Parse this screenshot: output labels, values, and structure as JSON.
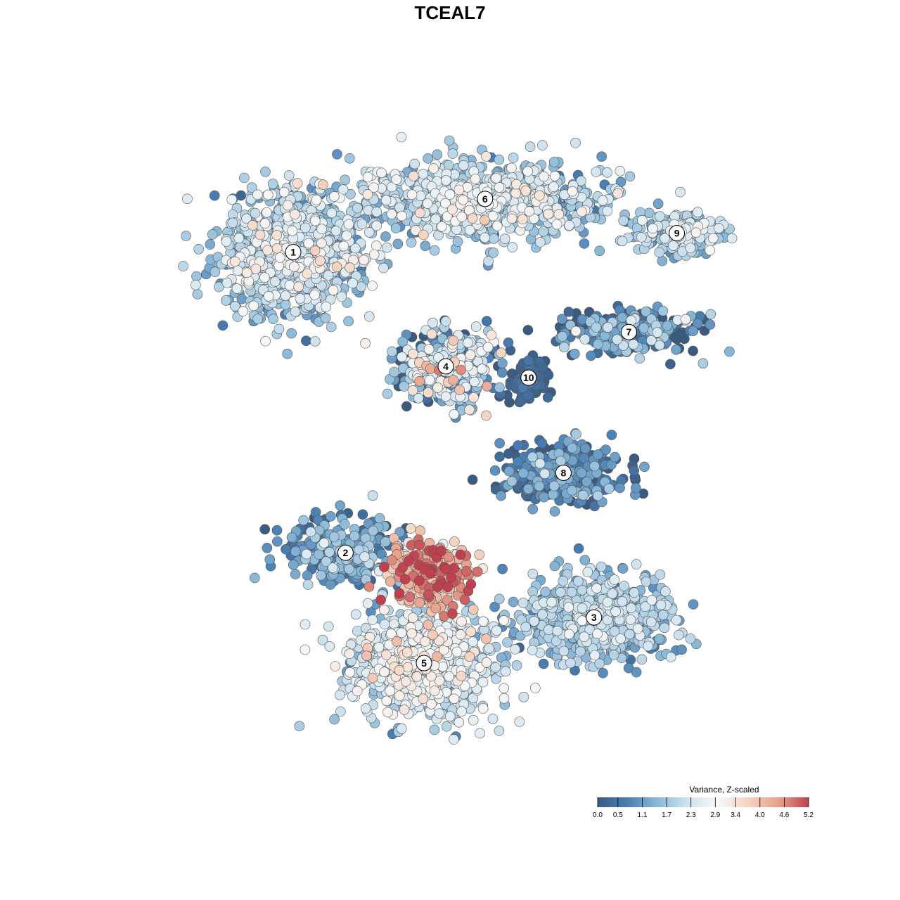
{
  "title": "TCEAL7",
  "chart_data": {
    "type": "scatter",
    "title": "TCEAL7",
    "xlabel": "",
    "ylabel": "",
    "axes_visible": false,
    "grid": false,
    "clusters": [
      {
        "label": "1",
        "x": -4.0,
        "y": 5.2,
        "spread": [
          1.6,
          1.5
        ],
        "n": 900,
        "mean": 1.9,
        "sd": 0.6
      },
      {
        "label": "2",
        "x": -2.8,
        "y": -2.7,
        "spread": [
          1.2,
          0.9
        ],
        "n": 280,
        "mean": 0.9,
        "sd": 0.7
      },
      {
        "label": "3",
        "x": 2.9,
        "y": -4.4,
        "spread": [
          1.5,
          1.0
        ],
        "n": 700,
        "mean": 1.6,
        "sd": 0.5
      },
      {
        "label": "4",
        "x": -0.5,
        "y": 2.2,
        "spread": [
          1.0,
          0.9
        ],
        "n": 350,
        "mean": 1.5,
        "sd": 1.2
      },
      {
        "label": "5",
        "x": -1.0,
        "y": -5.6,
        "spread": [
          1.5,
          1.2
        ],
        "n": 900,
        "mean": 2.2,
        "sd": 0.6
      },
      {
        "label": "6",
        "x": 0.4,
        "y": 6.6,
        "spread": [
          2.4,
          0.9
        ],
        "n": 900,
        "mean": 1.9,
        "sd": 0.6
      },
      {
        "label": "7",
        "x": 3.7,
        "y": 3.1,
        "spread": [
          1.4,
          0.5
        ],
        "n": 320,
        "mean": 0.6,
        "sd": 0.9
      },
      {
        "label": "8",
        "x": 2.2,
        "y": -0.6,
        "spread": [
          1.2,
          0.7
        ],
        "n": 380,
        "mean": 0.5,
        "sd": 0.6
      },
      {
        "label": "9",
        "x": 4.8,
        "y": 5.7,
        "spread": [
          1.0,
          0.5
        ],
        "n": 200,
        "mean": 1.8,
        "sd": 0.6
      },
      {
        "label": "10",
        "x": 1.4,
        "y": 1.9,
        "spread": [
          0.4,
          0.6
        ],
        "n": 90,
        "mean": 0.2,
        "sd": 0.2
      },
      {
        "label": "",
        "x": -0.8,
        "y": -3.2,
        "spread": [
          0.9,
          0.8
        ],
        "n": 260,
        "mean": 4.0,
        "sd": 0.8
      }
    ],
    "xlim": [
      -7.5,
      7.5
    ],
    "ylim": [
      -8.5,
      8.5
    ],
    "color_scale": {
      "title": "Variance, Z-scaled",
      "min": 0.0,
      "max": 5.2,
      "ticks": [
        0.0,
        0.5,
        1.1,
        1.7,
        2.3,
        2.9,
        3.4,
        4.0,
        4.6,
        5.2
      ],
      "tick_labels": [
        "0.0",
        "0.5",
        "1.1",
        "1.7",
        "2.3",
        "2.9",
        "3.4",
        "4.0",
        "4.6",
        "5.2"
      ],
      "colors": [
        "#3a5a80",
        "#4a7fb5",
        "#8ab9d8",
        "#cfe3ef",
        "#f7f7f7",
        "#f5d3c0",
        "#e8a08a",
        "#c0404f"
      ]
    }
  }
}
